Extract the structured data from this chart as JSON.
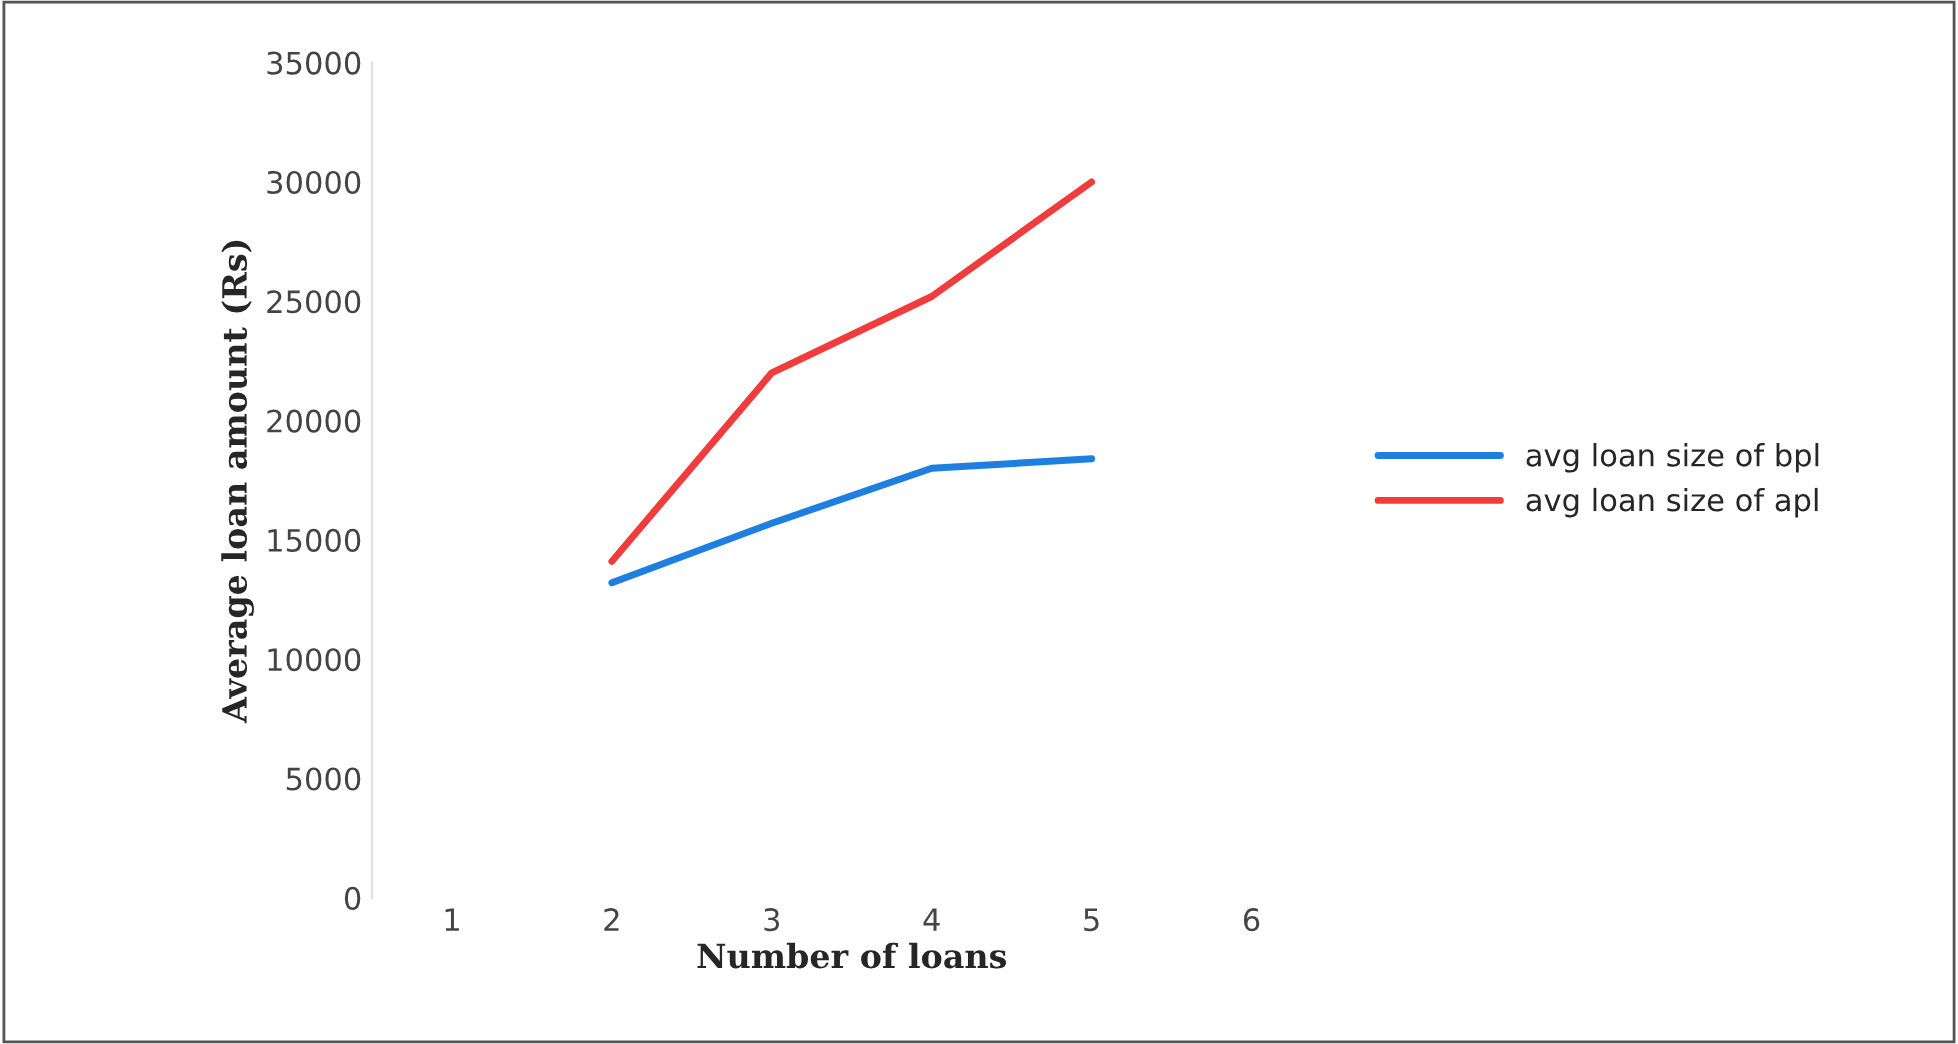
{
  "chart_data": {
    "type": "line",
    "xlabel": "Number of loans",
    "ylabel": "Average loan amount (Rs)",
    "categories": [
      "1",
      "2",
      "3",
      "4",
      "5",
      "6"
    ],
    "series": [
      {
        "name": "avg loan size of bpl",
        "color": "#1f7fe0",
        "values": [
          null,
          13200,
          15700,
          18000,
          18400,
          null
        ]
      },
      {
        "name": "avg loan size of apl",
        "color": "#f03c3c",
        "values": [
          null,
          14100,
          22000,
          25200,
          30000,
          null
        ]
      }
    ],
    "ylim": [
      0,
      35000
    ],
    "yticks": [
      0,
      5000,
      10000,
      15000,
      20000,
      25000,
      30000,
      35000
    ],
    "legend": "right",
    "marker": "none",
    "line_style": "solid"
  }
}
